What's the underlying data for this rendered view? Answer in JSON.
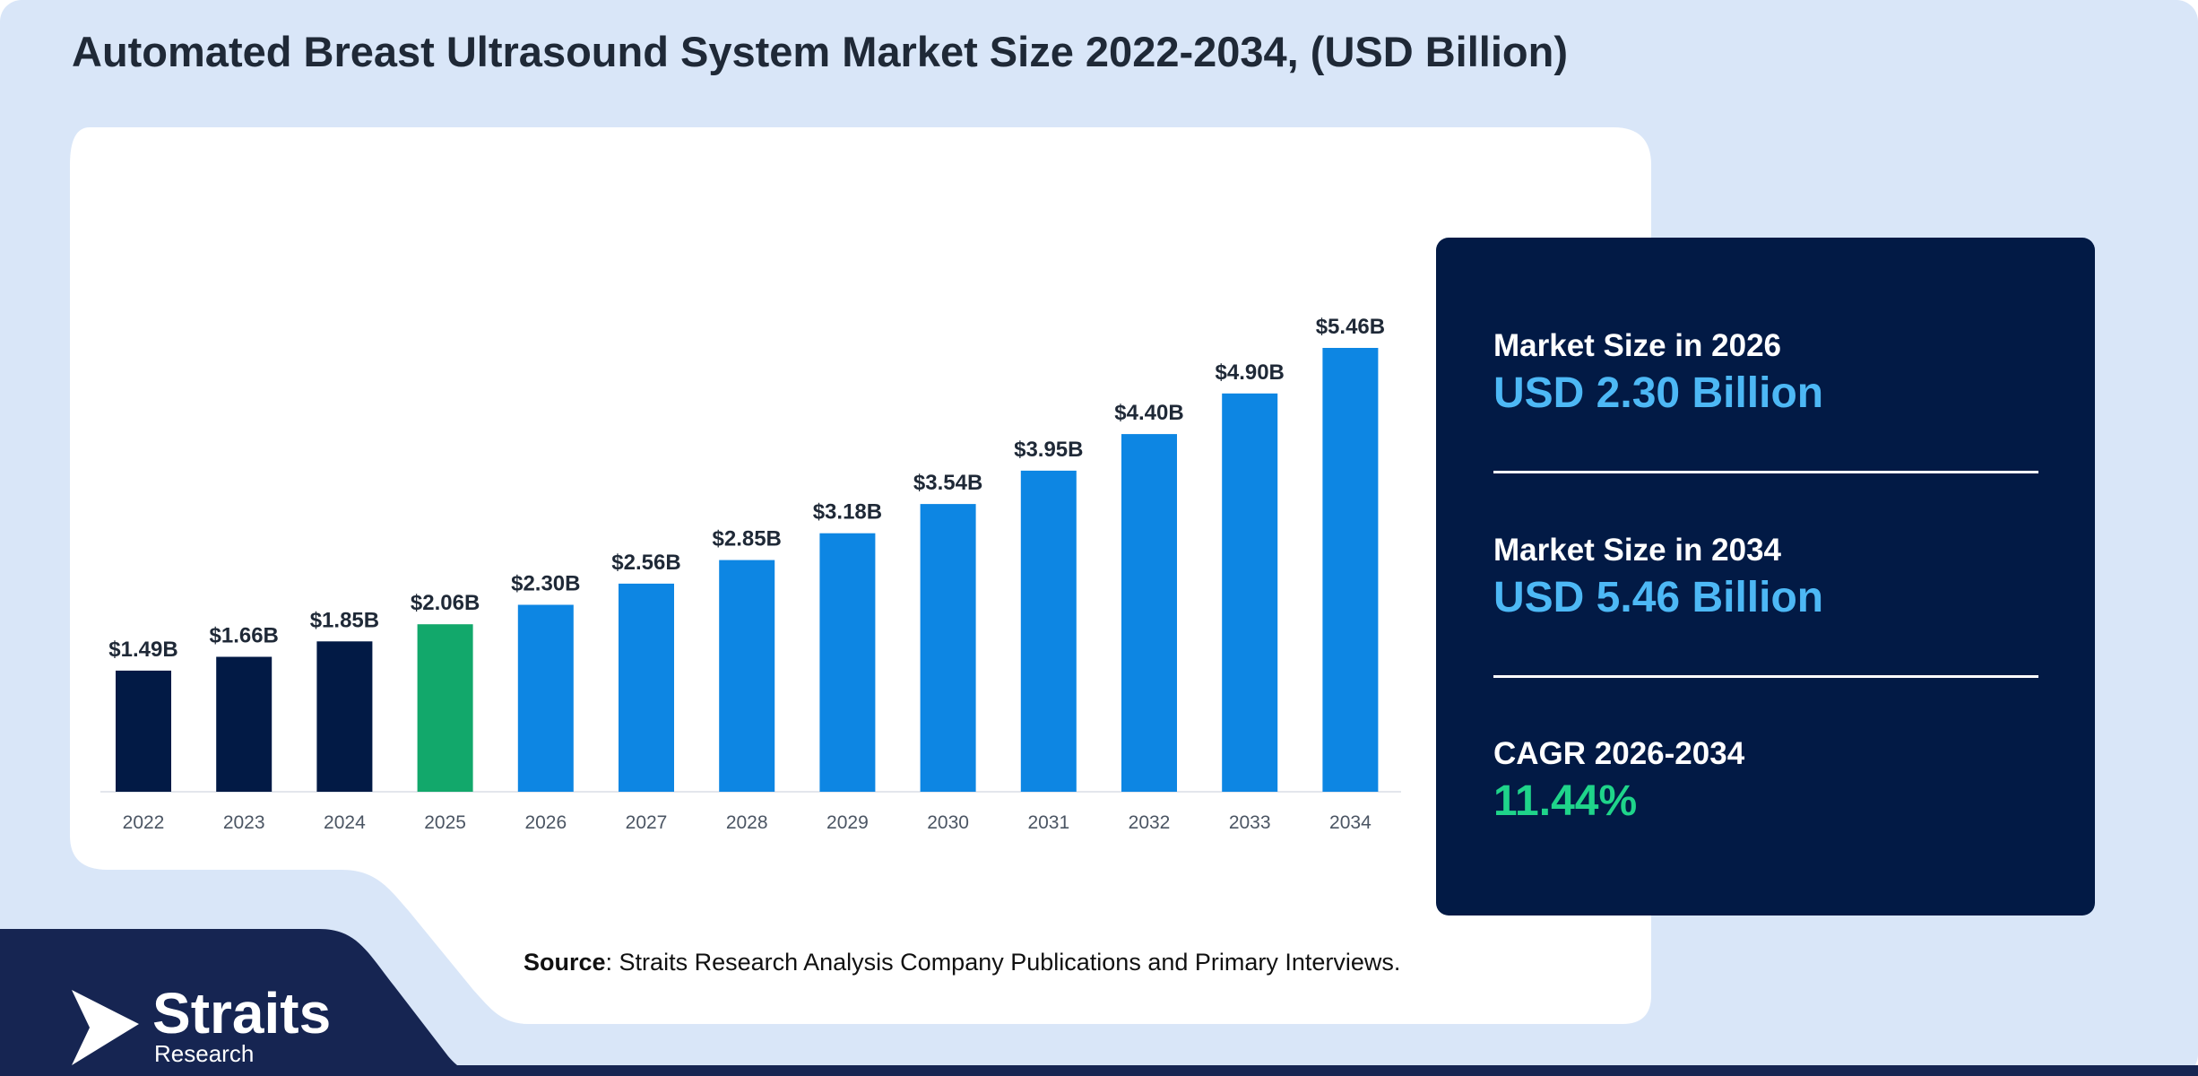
{
  "title": "Automated Breast Ultrasound System Market Size 2022-2034, (USD Billion)",
  "chart_data": {
    "type": "bar",
    "categories": [
      "2022",
      "2023",
      "2024",
      "2025",
      "2026",
      "2027",
      "2028",
      "2029",
      "2030",
      "2031",
      "2032",
      "2033",
      "2034"
    ],
    "values": [
      1.49,
      1.66,
      1.85,
      2.06,
      2.3,
      2.56,
      2.85,
      3.18,
      3.54,
      3.95,
      4.4,
      4.9,
      5.46
    ],
    "data_labels": [
      "$1.49B",
      "$1.66B",
      "$1.85B",
      "$2.06B",
      "$2.30B",
      "$2.56B",
      "$2.85B",
      "$3.18B",
      "$3.54B",
      "$3.95B",
      "$4.40B",
      "$4.90B",
      "$5.46B"
    ],
    "ylim": [
      0,
      5.46
    ],
    "grid": false,
    "colors": {
      "historical": "#021a45",
      "base_year": "#12a86b",
      "forecast": "#0d86e3"
    },
    "bar_color_groups": [
      "historical",
      "historical",
      "historical",
      "base_year",
      "forecast",
      "forecast",
      "forecast",
      "forecast",
      "forecast",
      "forecast",
      "forecast",
      "forecast",
      "forecast"
    ]
  },
  "info_panel": {
    "items": [
      {
        "label": "Market Size in 2026",
        "value": "USD 2.30 Billion",
        "value_color": "#4db8f5"
      },
      {
        "label": "Market Size in 2034",
        "value": "USD 5.46 Billion",
        "value_color": "#4db8f5"
      },
      {
        "label": "CAGR 2026-2034",
        "value": "11.44%",
        "value_color": "#1fd48a"
      }
    ]
  },
  "source": {
    "prefix": "Source",
    "text": ": Straits Research Analysis Company Publications and Primary Interviews."
  },
  "logo": {
    "name": "Straits",
    "sub": "Research"
  },
  "colors": {
    "page_bg": "#d9e6f8",
    "card_bg": "#ffffff",
    "dark_navy": "#0f1e4a",
    "bottom_band": "#162552",
    "title_text": "#1f2937"
  }
}
